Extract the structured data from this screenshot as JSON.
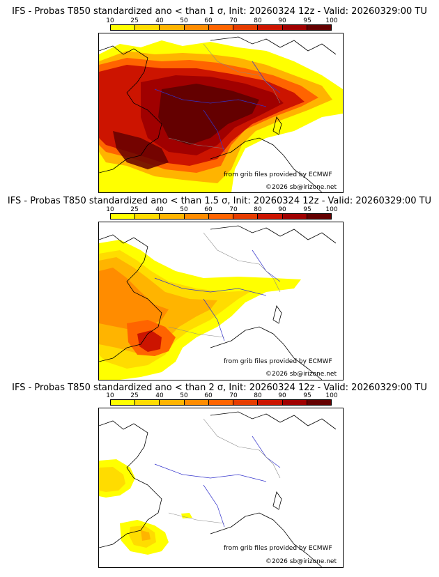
{
  "colorbar": {
    "ticks": [
      "10",
      "25",
      "40",
      "50",
      "60",
      "70",
      "80",
      "90",
      "95",
      "100"
    ],
    "colors": [
      "#ffff00",
      "#ffdc00",
      "#ffb400",
      "#ff8c00",
      "#ff6400",
      "#e63c00",
      "#cc1400",
      "#a00000",
      "#640000"
    ]
  },
  "panels": [
    {
      "title": "IFS - Probas T850  standardized ano < than 1 σ, Init: 20260324 12z - Valid: 20260329:00 TU",
      "credit_line1": "from grib files provided by ECMWF",
      "credit_line2": "©2026 sb@irizone.net"
    },
    {
      "title": "IFS - Probas T850  standardized ano < than 1.5 σ, Init: 20260324 12z - Valid: 20260329:00 TU",
      "credit_line1": "from grib files provided by ECMWF",
      "credit_line2": "©2026 sb@irizone.net"
    },
    {
      "title": "IFS - Probas T850  standardized ano < than 2 σ, Init: 20260324 12z - Valid: 20260329:00 TU",
      "credit_line1": "from grib files provided by ECMWF",
      "credit_line2": "©2026 sb@irizone.net"
    }
  ]
}
